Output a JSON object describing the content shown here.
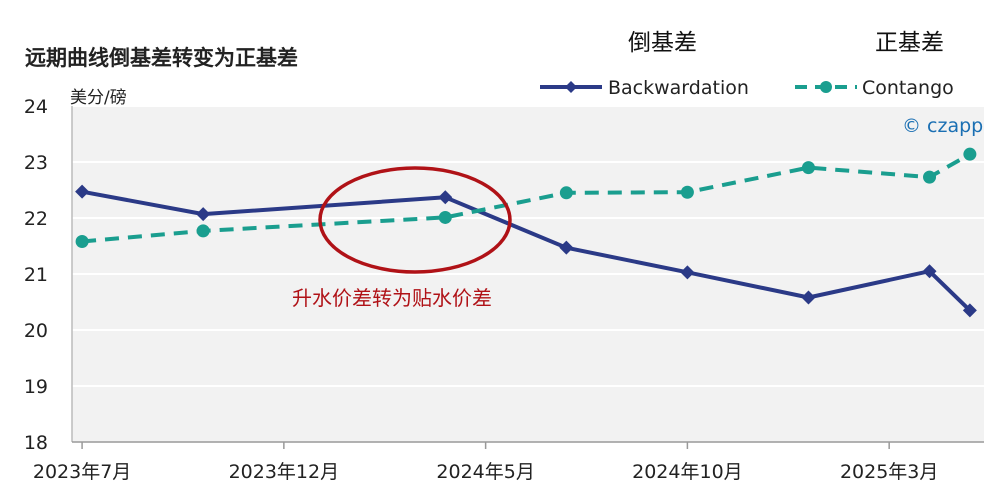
{
  "chart_data": {
    "type": "line",
    "title": "远期曲线倒基差转变为正基差",
    "ylabel": "美分/磅",
    "ylim": [
      18,
      24
    ],
    "yticks": [
      18,
      19,
      20,
      21,
      22,
      23,
      24
    ],
    "xticks": [
      "2023年7月",
      "2023年12月",
      "2024年5月",
      "2024年10月",
      "2025年3月"
    ],
    "x": [
      "2023-07",
      "2023-10",
      "2024-01",
      "2024-04",
      "2024-07",
      "2024-10",
      "2025-01",
      "2025-04",
      "2025-05"
    ],
    "series": [
      {
        "name": "Backwardation",
        "color": "#2b3a87",
        "style": "solid",
        "marker": "diamond",
        "values": [
          22.47,
          22.07,
          null,
          22.37,
          21.47,
          21.03,
          20.58,
          21.05,
          20.35
        ]
      },
      {
        "name": "Contango",
        "color": "#1a9e8f",
        "style": "dashed",
        "marker": "circle",
        "values": [
          21.58,
          21.77,
          null,
          22.01,
          22.45,
          22.46,
          22.9,
          22.73,
          23.14
        ]
      }
    ],
    "legend_position": "top-right",
    "grid": "horizontal",
    "headings": {
      "backwardation": "倒基差",
      "contango": "正基差"
    },
    "annotation": "升水价差转为贴水价差",
    "brand": "© czapp"
  }
}
